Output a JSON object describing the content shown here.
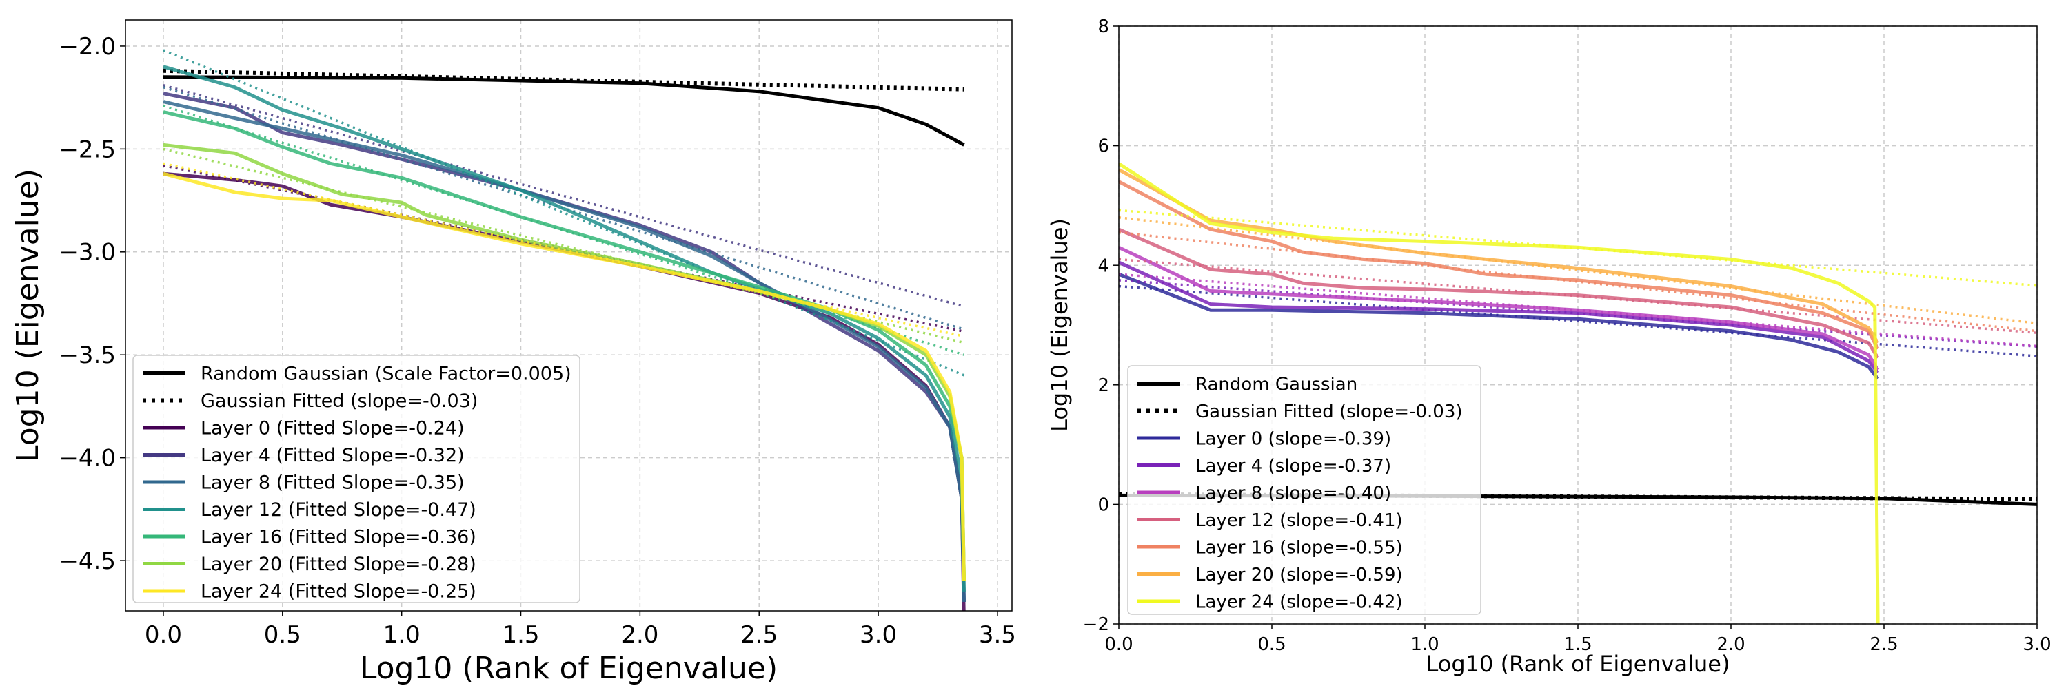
{
  "chart_data": [
    {
      "type": "line",
      "xlabel": "Log10 (Rank of Eigenvalue)",
      "ylabel": "Log10 (Eigenvalue)",
      "xlim": [
        -0.159,
        3.561
      ],
      "ylim": [
        -4.744,
        -1.873
      ],
      "xticks": [
        "0.0",
        "0.5",
        "1.0",
        "1.5",
        "2.0",
        "2.5",
        "3.0",
        "3.5"
      ],
      "yticks": [
        "-2.0",
        "-2.5",
        "-3.0",
        "-3.5",
        "-4.0",
        "-4.5"
      ],
      "grid": true,
      "legend_position": "lower-left",
      "series": [
        {
          "name": "Random Gaussian (Scale Factor=0.005)",
          "color": "#000000",
          "style": "solid",
          "points": [
            [
              0,
              -2.15
            ],
            [
              1,
              -2.155
            ],
            [
              2,
              -2.18
            ],
            [
              2.5,
              -2.22
            ],
            [
              3,
              -2.3
            ],
            [
              3.2,
              -2.38
            ],
            [
              3.36,
              -2.48
            ]
          ]
        },
        {
          "name": "Gaussian Fitted (slope=-0.03)",
          "color": "#000000",
          "style": "dotted",
          "points": [
            [
              0,
              -2.12
            ],
            [
              3.36,
              -2.21
            ]
          ]
        },
        {
          "name": "Layer 0 (Fitted Slope=-0.24)",
          "color": "#440154",
          "style": "solid",
          "fit": [
            -2.58,
            -0.24
          ],
          "points": [
            [
              0,
              -2.62
            ],
            [
              0.3,
              -2.65
            ],
            [
              0.5,
              -2.68
            ],
            [
              0.7,
              -2.77
            ],
            [
              1,
              -2.83
            ],
            [
              1.5,
              -2.95
            ],
            [
              2,
              -3.07
            ],
            [
              2.5,
              -3.2
            ],
            [
              2.8,
              -3.32
            ],
            [
              3.0,
              -3.45
            ],
            [
              3.2,
              -3.65
            ],
            [
              3.3,
              -3.85
            ],
            [
              3.35,
              -4.2
            ],
            [
              3.36,
              -4.8
            ]
          ]
        },
        {
          "name": "Layer 4 (Fitted Slope=-0.32)",
          "color": "#443983",
          "style": "solid",
          "fit": [
            -2.19,
            -0.32
          ],
          "points": [
            [
              0,
              -2.23
            ],
            [
              0.3,
              -2.3
            ],
            [
              0.5,
              -2.42
            ],
            [
              0.75,
              -2.48
            ],
            [
              1,
              -2.55
            ],
            [
              1.5,
              -2.7
            ],
            [
              2,
              -2.87
            ],
            [
              2.3,
              -3.0
            ],
            [
              2.5,
              -3.15
            ],
            [
              2.8,
              -3.35
            ],
            [
              3.0,
              -3.48
            ],
            [
              3.2,
              -3.68
            ],
            [
              3.3,
              -3.85
            ],
            [
              3.35,
              -4.2
            ],
            [
              3.36,
              -4.7
            ]
          ]
        },
        {
          "name": "Layer 8 (Fitted Slope=-0.35)",
          "color": "#31688e",
          "style": "solid",
          "fit": [
            -2.2,
            -0.35
          ],
          "points": [
            [
              0,
              -2.27
            ],
            [
              0.3,
              -2.35
            ],
            [
              0.5,
              -2.4
            ],
            [
              1,
              -2.53
            ],
            [
              1.5,
              -2.7
            ],
            [
              2,
              -2.88
            ],
            [
              2.3,
              -3.02
            ],
            [
              2.5,
              -3.15
            ],
            [
              2.8,
              -3.33
            ],
            [
              3.0,
              -3.46
            ],
            [
              3.2,
              -3.66
            ],
            [
              3.3,
              -3.85
            ],
            [
              3.35,
              -4.2
            ],
            [
              3.36,
              -4.7
            ]
          ]
        },
        {
          "name": "Layer 12 (Fitted Slope=-0.47)",
          "color": "#21918c",
          "style": "solid",
          "fit": [
            -2.02,
            -0.47
          ],
          "points": [
            [
              0,
              -2.1
            ],
            [
              0.3,
              -2.2
            ],
            [
              0.5,
              -2.31
            ],
            [
              0.75,
              -2.4
            ],
            [
              1,
              -2.5
            ],
            [
              1.5,
              -2.7
            ],
            [
              2,
              -2.95
            ],
            [
              2.3,
              -3.1
            ],
            [
              2.5,
              -3.18
            ],
            [
              2.8,
              -3.3
            ],
            [
              3.0,
              -3.42
            ],
            [
              3.2,
              -3.6
            ],
            [
              3.3,
              -3.8
            ],
            [
              3.35,
              -4.1
            ],
            [
              3.36,
              -4.65
            ]
          ]
        },
        {
          "name": "Layer 16 (Fitted Slope=-0.36)",
          "color": "#35b779",
          "style": "solid",
          "fit": [
            -2.29,
            -0.36
          ],
          "points": [
            [
              0,
              -2.32
            ],
            [
              0.3,
              -2.4
            ],
            [
              0.5,
              -2.49
            ],
            [
              0.7,
              -2.57
            ],
            [
              1,
              -2.64
            ],
            [
              1.5,
              -2.83
            ],
            [
              2,
              -3.0
            ],
            [
              2.5,
              -3.17
            ],
            [
              2.8,
              -3.28
            ],
            [
              3.0,
              -3.38
            ],
            [
              3.2,
              -3.55
            ],
            [
              3.3,
              -3.75
            ],
            [
              3.35,
              -4.0
            ],
            [
              3.36,
              -4.6
            ]
          ]
        },
        {
          "name": "Layer 20 (Fitted Slope=-0.28)",
          "color": "#90d743",
          "style": "solid",
          "fit": [
            -2.5,
            -0.28
          ],
          "points": [
            [
              0,
              -2.48
            ],
            [
              0.3,
              -2.52
            ],
            [
              0.5,
              -2.62
            ],
            [
              0.75,
              -2.72
            ],
            [
              1,
              -2.76
            ],
            [
              1.1,
              -2.82
            ],
            [
              1.5,
              -2.94
            ],
            [
              2,
              -3.06
            ],
            [
              2.5,
              -3.19
            ],
            [
              2.8,
              -3.28
            ],
            [
              3.0,
              -3.36
            ],
            [
              3.2,
              -3.5
            ],
            [
              3.3,
              -3.7
            ],
            [
              3.35,
              -4.0
            ],
            [
              3.36,
              -4.6
            ]
          ]
        },
        {
          "name": "Layer 24 (Fitted Slope=-0.25)",
          "color": "#fde725",
          "style": "solid",
          "fit": [
            -2.57,
            -0.25
          ],
          "points": [
            [
              0,
              -2.62
            ],
            [
              0.3,
              -2.71
            ],
            [
              0.5,
              -2.74
            ],
            [
              0.7,
              -2.75
            ],
            [
              1,
              -2.83
            ],
            [
              1.5,
              -2.96
            ],
            [
              2,
              -3.07
            ],
            [
              2.5,
              -3.19
            ],
            [
              2.8,
              -3.28
            ],
            [
              3.0,
              -3.35
            ],
            [
              3.2,
              -3.48
            ],
            [
              3.3,
              -3.68
            ],
            [
              3.35,
              -4.0
            ],
            [
              3.36,
              -4.6
            ]
          ]
        }
      ],
      "fit_x_end": 3.36
    },
    {
      "type": "line",
      "xlabel": "Log10 (Rank of Eigenvalue)",
      "ylabel": "Log10 (Eigenvalue)",
      "xlim": [
        0,
        3
      ],
      "ylim": [
        -2,
        8
      ],
      "xticks": [
        "0.0",
        "0.5",
        "1.0",
        "1.5",
        "2.0",
        "2.5",
        "3.0"
      ],
      "yticks": [
        "-2",
        "0",
        "2",
        "4",
        "6",
        "8"
      ],
      "grid": true,
      "legend_position": "lower-left",
      "series": [
        {
          "name": "Random Gaussian",
          "color": "#000000",
          "style": "solid",
          "points": [
            [
              0,
              0.15
            ],
            [
              1,
              0.14
            ],
            [
              2,
              0.12
            ],
            [
              2.5,
              0.1
            ],
            [
              3,
              0.0
            ]
          ]
        },
        {
          "name": "Gaussian Fitted (slope=-0.03)",
          "color": "#000000",
          "style": "dotted",
          "points": [
            [
              0,
              0.17
            ],
            [
              3,
              0.09
            ]
          ]
        },
        {
          "name": "Layer 0 (slope=-0.39)",
          "color": "#2e2a9a",
          "style": "solid",
          "fit": [
            3.65,
            -0.39
          ],
          "points": [
            [
              0,
              3.85
            ],
            [
              0.3,
              3.25
            ],
            [
              0.5,
              3.25
            ],
            [
              1,
              3.2
            ],
            [
              1.5,
              3.1
            ],
            [
              2,
              2.9
            ],
            [
              2.2,
              2.75
            ],
            [
              2.35,
              2.55
            ],
            [
              2.45,
              2.3
            ],
            [
              2.48,
              2.1
            ]
          ]
        },
        {
          "name": "Layer 4 (slope=-0.37)",
          "color": "#7a22b8",
          "style": "solid",
          "fit": [
            3.75,
            -0.37
          ],
          "points": [
            [
              0,
              4.05
            ],
            [
              0.3,
              3.35
            ],
            [
              0.5,
              3.3
            ],
            [
              1,
              3.27
            ],
            [
              1.5,
              3.2
            ],
            [
              2,
              3.0
            ],
            [
              2.3,
              2.8
            ],
            [
              2.45,
              2.4
            ],
            [
              2.48,
              2.2
            ]
          ]
        },
        {
          "name": "Layer 8 (slope=-0.40)",
          "color": "#b83fbe",
          "style": "solid",
          "fit": [
            3.85,
            -0.4
          ],
          "points": [
            [
              0,
              4.3
            ],
            [
              0.3,
              3.57
            ],
            [
              0.5,
              3.52
            ],
            [
              1,
              3.4
            ],
            [
              1.5,
              3.25
            ],
            [
              2,
              3.05
            ],
            [
              2.3,
              2.85
            ],
            [
              2.45,
              2.5
            ],
            [
              2.48,
              2.25
            ]
          ]
        },
        {
          "name": "Layer 12 (slope=-0.41)",
          "color": "#d6607f",
          "style": "solid",
          "fit": [
            4.1,
            -0.41
          ],
          "points": [
            [
              0,
              4.6
            ],
            [
              0.3,
              3.93
            ],
            [
              0.5,
              3.85
            ],
            [
              0.6,
              3.7
            ],
            [
              0.8,
              3.62
            ],
            [
              1,
              3.6
            ],
            [
              1.5,
              3.5
            ],
            [
              2,
              3.3
            ],
            [
              2.3,
              3.0
            ],
            [
              2.45,
              2.7
            ],
            [
              2.48,
              2.45
            ]
          ]
        },
        {
          "name": "Layer 16 (slope=-0.55)",
          "color": "#ef8262",
          "style": "solid",
          "fit": [
            4.55,
            -0.55
          ],
          "points": [
            [
              0,
              5.4
            ],
            [
              0.3,
              4.6
            ],
            [
              0.5,
              4.4
            ],
            [
              0.6,
              4.22
            ],
            [
              0.8,
              4.1
            ],
            [
              1,
              4.03
            ],
            [
              1.2,
              3.85
            ],
            [
              1.5,
              3.75
            ],
            [
              2,
              3.5
            ],
            [
              2.3,
              3.2
            ],
            [
              2.45,
              2.9
            ],
            [
              2.48,
              2.6
            ]
          ]
        },
        {
          "name": "Layer 20 (slope=-0.59)",
          "color": "#fbaf44",
          "style": "solid",
          "fit": [
            4.8,
            -0.59
          ],
          "points": [
            [
              0,
              5.6
            ],
            [
              0.3,
              4.75
            ],
            [
              0.5,
              4.6
            ],
            [
              0.7,
              4.4
            ],
            [
              1,
              4.2
            ],
            [
              1.5,
              3.95
            ],
            [
              2,
              3.65
            ],
            [
              2.3,
              3.35
            ],
            [
              2.45,
              2.95
            ],
            [
              2.48,
              2.7
            ]
          ]
        },
        {
          "name": "Layer 24 (slope=-0.42)",
          "color": "#f0f921",
          "style": "solid",
          "fit": [
            4.92,
            -0.42
          ],
          "points": [
            [
              0,
              5.7
            ],
            [
              0.3,
              4.7
            ],
            [
              0.5,
              4.55
            ],
            [
              0.7,
              4.45
            ],
            [
              1,
              4.4
            ],
            [
              1.5,
              4.3
            ],
            [
              2,
              4.1
            ],
            [
              2.2,
              3.95
            ],
            [
              2.35,
              3.7
            ],
            [
              2.45,
              3.4
            ],
            [
              2.47,
              3.3
            ],
            [
              2.48,
              -2.0
            ]
          ]
        }
      ],
      "fit_x_end": 3.0
    }
  ]
}
